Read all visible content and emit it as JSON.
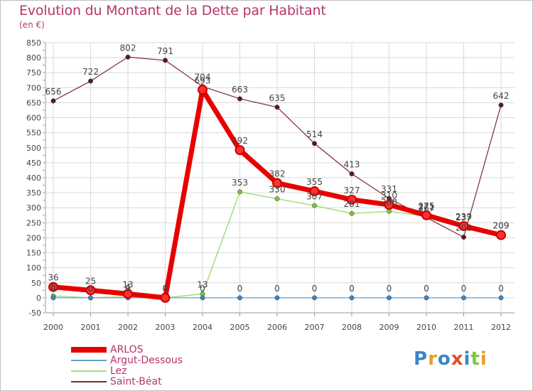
{
  "title": "Evolution du Montant de la Dette par Habitant",
  "subtitle": "(en €)",
  "logo": "Proxiti",
  "chart_data": {
    "type": "line",
    "title": "Evolution du Montant de la Dette par Habitant",
    "ylabel": "(en €)",
    "xlabel": "",
    "ylim": [
      -50,
      850
    ],
    "yticks": [
      -50,
      0,
      50,
      100,
      150,
      200,
      250,
      300,
      350,
      400,
      450,
      500,
      550,
      600,
      650,
      700,
      750,
      800,
      850
    ],
    "categories": [
      "2000",
      "2001",
      "2002",
      "2003",
      "2004",
      "2005",
      "2006",
      "2007",
      "2008",
      "2009",
      "2010",
      "2011",
      "2012"
    ],
    "series": [
      {
        "name": "ARLOS",
        "color": "#e80000",
        "marker": "#e80000",
        "values": [
          36,
          25,
          13,
          0,
          693,
          492,
          382,
          355,
          327,
          310,
          275,
          239,
          209
        ]
      },
      {
        "name": "Argut-Dessous",
        "color": "#6a9fc9",
        "marker": "#3a86c8",
        "values": [
          0,
          0,
          0,
          0,
          0,
          0,
          0,
          0,
          0,
          0,
          0,
          0,
          0
        ]
      },
      {
        "name": "Lez",
        "color": "#a6dc7c",
        "marker": "#7cc63c",
        "values": [
          6,
          0,
          4,
          0,
          13,
          353,
          330,
          307,
          281,
          288,
          271,
          237,
          209
        ]
      },
      {
        "name": "Saint-Béat",
        "color": "#7a2c33",
        "marker": "#5a1a1f",
        "values": [
          656,
          722,
          802,
          791,
          704,
          663,
          635,
          514,
          413,
          331,
          267,
          202,
          642
        ]
      }
    ],
    "labels": {
      "ARLOS": [
        "36",
        "25",
        "13",
        "0",
        "693",
        "492",
        "382",
        "355",
        "327",
        "310",
        "275",
        "239",
        "209"
      ],
      "Argut-Dessous": [
        "0",
        "0",
        "0",
        "0",
        "0",
        "0",
        "0",
        "0",
        "0",
        "0",
        "0",
        "0",
        "0"
      ],
      "Lez": [
        "6",
        "0",
        "4",
        "0",
        "13",
        "353",
        "330",
        "307",
        "281",
        "288",
        "271",
        "237",
        "209"
      ],
      "Saint-Béat": [
        "656",
        "722",
        "802",
        "791",
        "704",
        "663",
        "635",
        "514",
        "413",
        "331",
        "267",
        "202",
        "642"
      ]
    },
    "legend_position": "bottom-left"
  },
  "legend": [
    {
      "label": "ARLOS",
      "color": "#e80000"
    },
    {
      "label": "Argut-Dessous",
      "color": "#6a9fc9"
    },
    {
      "label": "Lez",
      "color": "#a6dc7c"
    },
    {
      "label": "Saint-Béat",
      "color": "#7a2c33"
    }
  ]
}
